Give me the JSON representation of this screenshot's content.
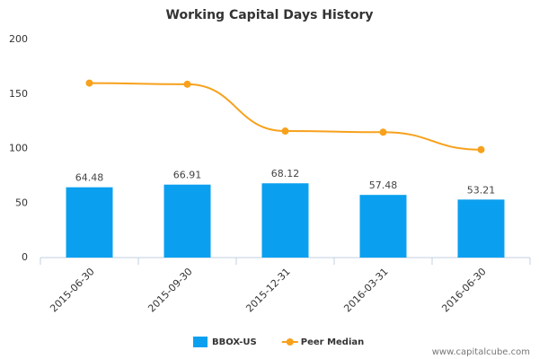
{
  "chart_data": {
    "type": "bar",
    "title": "Working Capital Days History",
    "categories": [
      "2015-06-30",
      "2015-09-30",
      "2015-12-31",
      "2016-03-31",
      "2016-06-30"
    ],
    "series": [
      {
        "name": "BBOX-US",
        "type": "bar",
        "color": "#0ba0ef",
        "values": [
          64.48,
          66.91,
          68.12,
          57.48,
          53.21
        ]
      },
      {
        "name": "Peer Median",
        "type": "line",
        "color": "#f7a11c",
        "values": [
          160,
          159,
          116,
          115,
          99
        ]
      }
    ],
    "ylim": [
      0,
      200
    ],
    "yticks": [
      0,
      50,
      100,
      150,
      200
    ],
    "grid": false,
    "legend": "bottom",
    "watermark": "www.capitalcube.com"
  }
}
